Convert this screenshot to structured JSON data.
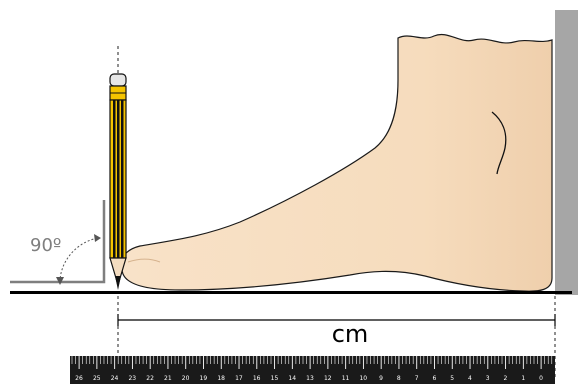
{
  "diagram": {
    "angle_label": "90º",
    "unit_label": "cm",
    "ruler": {
      "numbers": [
        "26",
        "25",
        "24",
        "23",
        "22",
        "21",
        "20",
        "19",
        "18",
        "17",
        "16",
        "15",
        "14",
        "13",
        "12",
        "11",
        "10",
        "9",
        "8",
        "7",
        "6",
        "5",
        "4",
        "3",
        "2",
        "1",
        "0"
      ]
    },
    "colors": {
      "skin": "#f6ddc0",
      "skin_shade": "#e9c8a3",
      "wall": "#a6a6a6",
      "pencil_yellow": "#f5c400",
      "pencil_black": "#111111",
      "line": "#000000",
      "angle_gray": "#7f7f7f",
      "ruler": "#1a1a1a"
    },
    "icons": [
      "pencil-icon",
      "foot-icon",
      "angle-arrow-icon",
      "ruler-icon"
    ]
  }
}
